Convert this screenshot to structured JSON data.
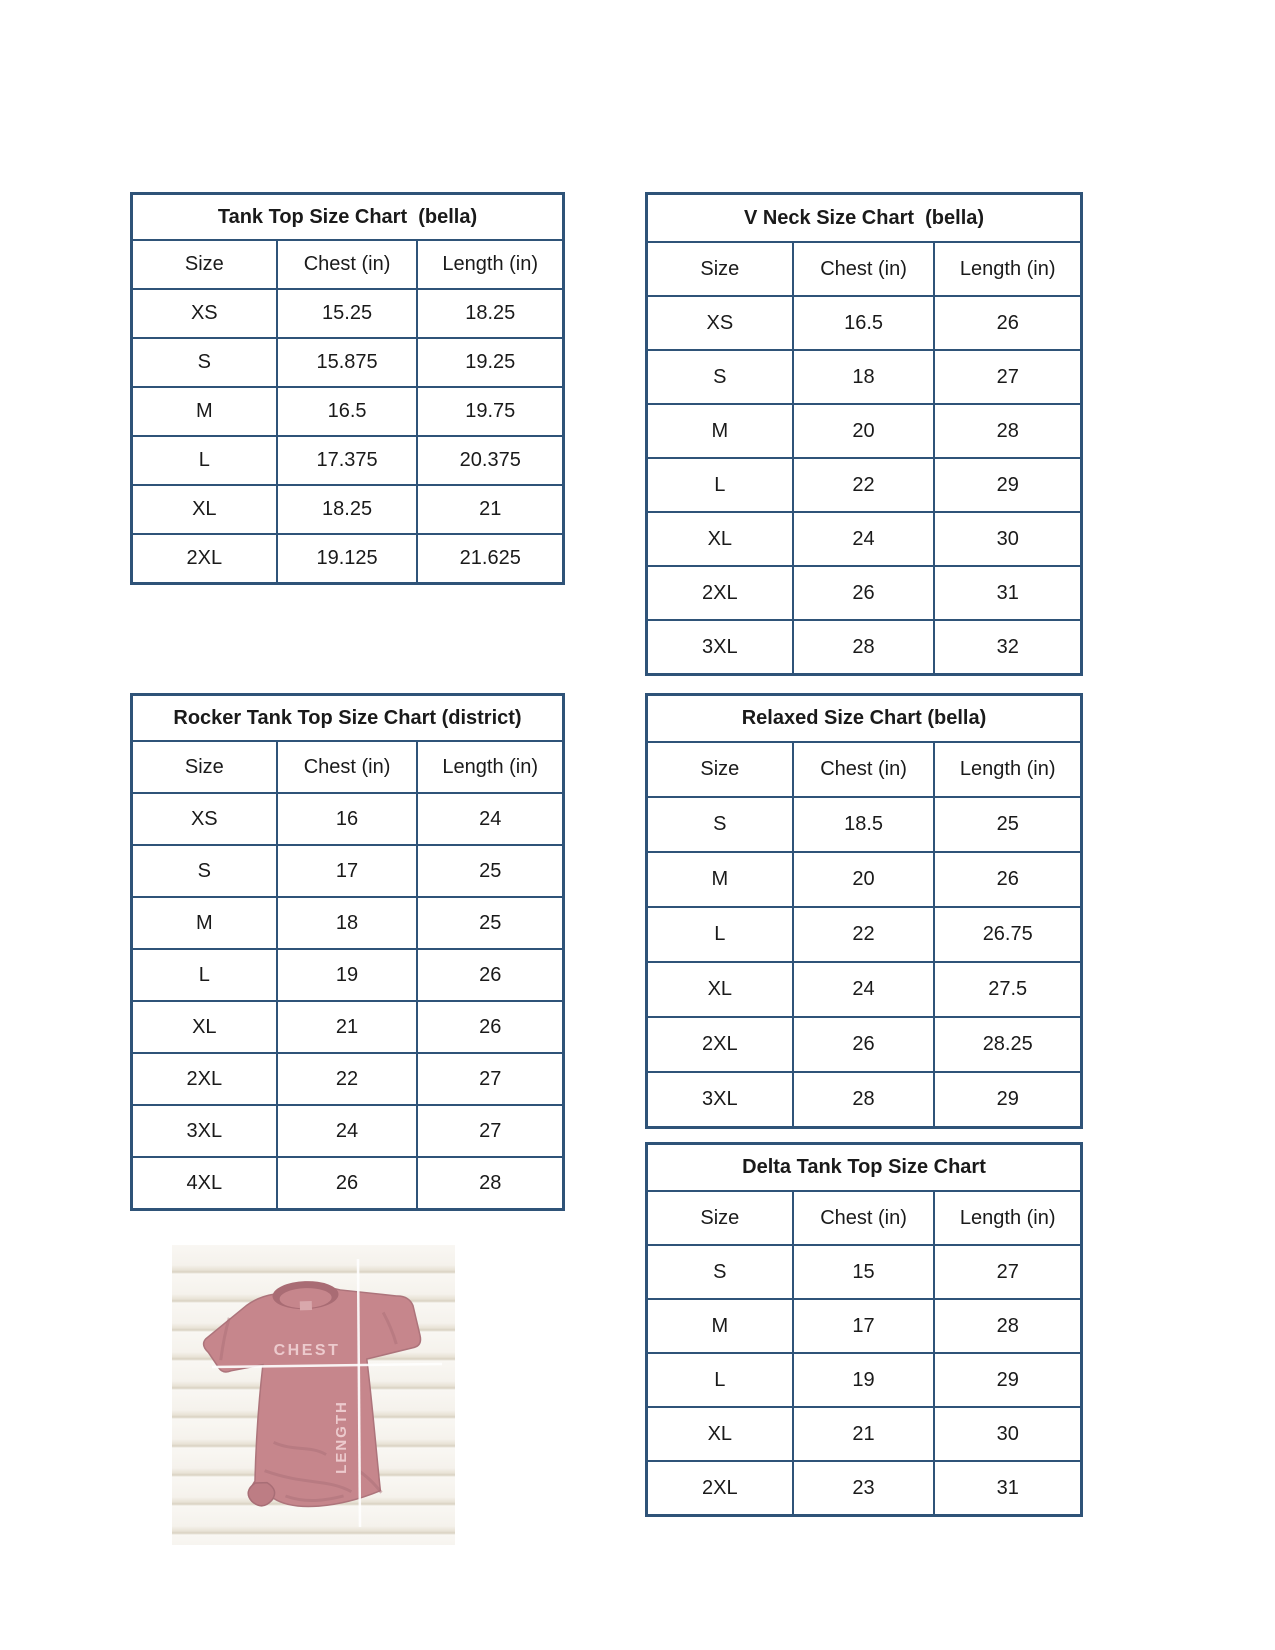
{
  "columns": [
    "Size",
    "Chest (in)",
    "Length (in)"
  ],
  "tables": [
    {
      "name": "tank-top-bella",
      "title": "Tank Top Size Chart  (bella)",
      "rows": [
        [
          "XS",
          "15.25",
          "18.25"
        ],
        [
          "S",
          "15.875",
          "19.25"
        ],
        [
          "M",
          "16.5",
          "19.75"
        ],
        [
          "L",
          "17.375",
          "20.375"
        ],
        [
          "XL",
          "18.25",
          "21"
        ],
        [
          "2XL",
          "19.125",
          "21.625"
        ]
      ]
    },
    {
      "name": "v-neck-bella",
      "title": "V Neck Size Chart  (bella)",
      "rows": [
        [
          "XS",
          "16.5",
          "26"
        ],
        [
          "S",
          "18",
          "27"
        ],
        [
          "M",
          "20",
          "28"
        ],
        [
          "L",
          "22",
          "29"
        ],
        [
          "XL",
          "24",
          "30"
        ],
        [
          "2XL",
          "26",
          "31"
        ],
        [
          "3XL",
          "28",
          "32"
        ]
      ]
    },
    {
      "name": "rocker-tank-top-district",
      "title": "Rocker Tank Top Size Chart (district)",
      "rows": [
        [
          "XS",
          "16",
          "24"
        ],
        [
          "S",
          "17",
          "25"
        ],
        [
          "M",
          "18",
          "25"
        ],
        [
          "L",
          "19",
          "26"
        ],
        [
          "XL",
          "21",
          "26"
        ],
        [
          "2XL",
          "22",
          "27"
        ],
        [
          "3XL",
          "24",
          "27"
        ],
        [
          "4XL",
          "26",
          "28"
        ]
      ]
    },
    {
      "name": "relaxed-bella",
      "title": "Relaxed Size Chart (bella)",
      "rows": [
        [
          "S",
          "18.5",
          "25"
        ],
        [
          "M",
          "20",
          "26"
        ],
        [
          "L",
          "22",
          "26.75"
        ],
        [
          "XL",
          "24",
          "27.5"
        ],
        [
          "2XL",
          "26",
          "28.25"
        ],
        [
          "3XL",
          "28",
          "29"
        ]
      ]
    },
    {
      "name": "delta-tank-top",
      "title": "Delta Tank Top Size Chart",
      "rows": [
        [
          "S",
          "15",
          "27"
        ],
        [
          "M",
          "17",
          "28"
        ],
        [
          "L",
          "19",
          "29"
        ],
        [
          "XL",
          "21",
          "30"
        ],
        [
          "2XL",
          "23",
          "31"
        ]
      ]
    }
  ],
  "photo": {
    "chest_label": "CHEST",
    "length_label": "LENGTH"
  },
  "colors": {
    "table_border": "#2f5378",
    "shirt": "#c6868c",
    "shirt_shadow": "#a86e76",
    "measure_line": "#ffffff",
    "photo_label_text": "#eccacd"
  }
}
